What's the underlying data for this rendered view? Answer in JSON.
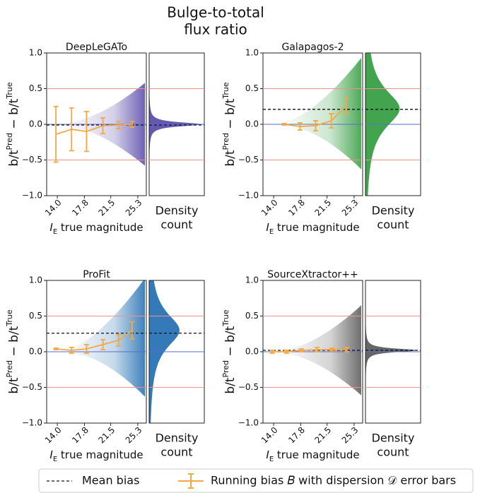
{
  "title_lines": [
    "Bulge-to-total",
    "flux ratio"
  ],
  "legend": [
    "Mean bias",
    "Running bias 𝐵 with dispersion 𝒟 error bars"
  ],
  "chart_data": [
    {
      "type": "errorbar",
      "title": "DeepLeGATo",
      "color": "#5546a8",
      "line_color": "#f5a742",
      "xlabel": [
        "I",
        "E",
        " true magnitude"
      ],
      "ylabel": [
        "b/t",
        "Pred",
        " − b/t",
        "True"
      ],
      "density_label": [
        "Density",
        "count"
      ],
      "xlim": [
        12.5,
        26.5
      ],
      "ylim": [
        -1,
        1
      ],
      "xticks": [
        {
          "value": 14,
          "label": "14.0"
        },
        17.8,
        21.5,
        25.3
      ],
      "yticks": [
        {
          "value": 1,
          "label": "1.0"
        },
        0.5,
        {
          "value": 0,
          "label": "0.0"
        },
        {
          "value": -0.5,
          "label": "−0.5"
        },
        {
          "value": -1,
          "label": "−1.0"
        }
      ],
      "hlines": [
        {
          "value": 0.5,
          "color": "#f09090"
        },
        {
          "value": 0,
          "color": "#5a6bd6"
        },
        {
          "value": -0.5,
          "color": "#f09090"
        }
      ],
      "mean_bias": -0.01,
      "x": [
        13.8,
        16.0,
        18.1,
        20.4,
        22.6,
        24.5
      ],
      "values": [
        -0.14,
        -0.07,
        -0.1,
        -0.02,
        -0.01,
        0.0
      ],
      "errors": [
        0.39,
        0.3,
        0.28,
        0.11,
        0.05,
        0.04
      ]
    },
    {
      "type": "errorbar",
      "title": "Galapagos-2",
      "color": "#2f9a3c",
      "line_color": "#f5a742",
      "xlabel": [
        "I",
        "E",
        " true magnitude"
      ],
      "ylabel": [
        "b/t",
        "Pred",
        " − b/t",
        "True"
      ],
      "density_label": [
        "Density",
        "count"
      ],
      "xlim": [
        12.5,
        26.5
      ],
      "ylim": [
        -1,
        1
      ],
      "xticks": [
        {
          "value": 14,
          "label": "14.0"
        },
        17.8,
        21.5,
        25.3
      ],
      "yticks": [
        {
          "value": 1,
          "label": "1.0"
        },
        0.5,
        {
          "value": 0,
          "label": "0.0"
        },
        {
          "value": -0.5,
          "label": "−0.5"
        },
        {
          "value": -1,
          "label": "−1.0"
        }
      ],
      "hlines": [
        {
          "value": 0.5,
          "color": "#f09090"
        },
        {
          "value": 0,
          "color": "#5a6bd6"
        },
        {
          "value": -0.5,
          "color": "#f09090"
        }
      ],
      "mean_bias": 0.21,
      "x": [
        15.5,
        17.7,
        19.9,
        22.1,
        24.2
      ],
      "values": [
        0.0,
        -0.03,
        -0.02,
        0.05,
        0.26
      ],
      "errors": [
        0.01,
        0.05,
        0.07,
        0.1,
        0.11
      ]
    },
    {
      "type": "errorbar",
      "title": "ProFit",
      "color": "#1f6cb0",
      "line_color": "#f5a742",
      "xlabel": [
        "I",
        "E",
        " true magnitude"
      ],
      "ylabel": [
        "b/t",
        "Pred",
        " − b/t",
        "True"
      ],
      "density_label": [
        "Density",
        "count"
      ],
      "xlim": [
        12.5,
        26.5
      ],
      "ylim": [
        -1,
        1
      ],
      "xticks": [
        {
          "value": 14,
          "label": "14.0"
        },
        17.8,
        21.5,
        25.3
      ],
      "yticks": [
        {
          "value": 1,
          "label": "1.0"
        },
        0.5,
        {
          "value": 0,
          "label": "0.0"
        },
        {
          "value": -0.5,
          "label": "−0.5"
        },
        {
          "value": -1,
          "label": "−1.0"
        }
      ],
      "hlines": [
        {
          "value": 0.5,
          "color": "#f09090"
        },
        {
          "value": 0,
          "color": "#5a6bd6"
        },
        {
          "value": -0.5,
          "color": "#f09090"
        }
      ],
      "mean_bias": 0.26,
      "x": [
        13.8,
        16.0,
        18.1,
        20.4,
        22.6,
        24.5
      ],
      "values": [
        0.04,
        0.02,
        0.04,
        0.1,
        0.16,
        0.3
      ],
      "errors": [
        0.01,
        0.04,
        0.06,
        0.07,
        0.08,
        0.12
      ]
    },
    {
      "type": "errorbar",
      "title": "SourceXtractor++",
      "color": "#555555",
      "line_color": "#f5a742",
      "xlabel": [
        "I",
        "E",
        " true magnitude"
      ],
      "ylabel": [
        "b/t",
        "Pred",
        " − b/t",
        "True"
      ],
      "density_label": [
        "Density",
        "count"
      ],
      "xlim": [
        12.5,
        26.5
      ],
      "ylim": [
        -1,
        1
      ],
      "xticks": [
        {
          "value": 14,
          "label": "14.0"
        },
        17.8,
        21.5,
        25.3
      ],
      "yticks": [
        {
          "value": 1,
          "label": "1.0"
        },
        0.5,
        {
          "value": 0,
          "label": "0.0"
        },
        {
          "value": -0.5,
          "label": "−0.5"
        },
        {
          "value": -1,
          "label": "−1.0"
        }
      ],
      "hlines": [
        {
          "value": 0.5,
          "color": "#f09090"
        },
        {
          "value": 0,
          "color": "#5a6bd6"
        },
        {
          "value": -0.5,
          "color": "#f09090"
        }
      ],
      "mean_bias": 0.02,
      "x": [
        13.8,
        15.8,
        17.9,
        20.1,
        22.2,
        24.3
      ],
      "values": [
        0.0,
        0.0,
        0.02,
        0.03,
        0.03,
        0.03
      ],
      "errors": [
        0.02,
        0.02,
        0.02,
        0.03,
        0.02,
        0.03
      ]
    }
  ]
}
